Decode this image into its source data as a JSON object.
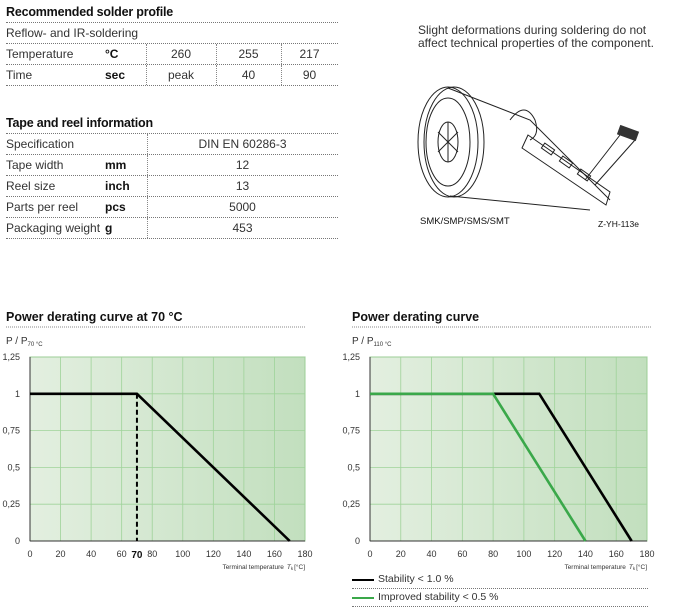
{
  "solder": {
    "title": "Recommended solder profile",
    "method": "Reflow- and IR-soldering",
    "rows": [
      {
        "label": "Temperature",
        "unit": "°C",
        "values": [
          "260",
          "255",
          "217"
        ]
      },
      {
        "label": "Time",
        "unit": "sec",
        "values": [
          "peak",
          "40",
          "90"
        ]
      }
    ]
  },
  "tape": {
    "title": "Tape and reel information",
    "rows": [
      {
        "label": "Specification",
        "unit": "",
        "value": "DIN EN 60286-3"
      },
      {
        "label": "Tape width",
        "unit": "mm",
        "value": "12"
      },
      {
        "label": "Reel size",
        "unit": "inch",
        "value": "13"
      },
      {
        "label": "Parts per reel",
        "unit": "pcs",
        "value": "5000"
      },
      {
        "label": "Packaging weight",
        "unit": "g",
        "value": "453"
      }
    ]
  },
  "note": "Slight deformations during soldering do not affect technical properties of the component.",
  "illustration": {
    "caption": "SMK/SMP/SMS/SMT",
    "code": "Z-YH-113e"
  },
  "chart_data": [
    {
      "type": "line",
      "title": "Power derating curve at 70 °C",
      "ylabel": "P / P",
      "ylabel_sub": "70 °C",
      "xlabel": "Terminal temperature",
      "xlabel_sym": "T",
      "xlabel_sub": "k",
      "xlabel_unit": "[°C]",
      "xlim": [
        0,
        180
      ],
      "ylim": [
        0,
        1.25
      ],
      "xticks": [
        "0",
        "20",
        "40",
        "60",
        "80",
        "100",
        "120",
        "140",
        "160",
        "180"
      ],
      "yticks": [
        "0",
        "0,25",
        "0,5",
        "0,75",
        "1",
        "1,25"
      ],
      "highlight_tick": "70",
      "grid": true,
      "series": [
        {
          "color": "#000000",
          "x": [
            0,
            70,
            170
          ],
          "y": [
            1,
            1,
            0
          ]
        }
      ],
      "reference_line": {
        "x": 70,
        "style": "dashed"
      }
    },
    {
      "type": "line",
      "title": "Power derating curve",
      "ylabel": "P / P",
      "ylabel_sub": "110 °C",
      "xlabel": "Terminal temperature",
      "xlabel_sym": "T",
      "xlabel_sub": "k",
      "xlabel_unit": "[°C]",
      "xlim": [
        0,
        180
      ],
      "ylim": [
        0,
        1.25
      ],
      "xticks": [
        "0",
        "20",
        "40",
        "60",
        "80",
        "100",
        "120",
        "140",
        "160",
        "180"
      ],
      "yticks": [
        "0",
        "0,25",
        "0,5",
        "0,75",
        "1",
        "1,25"
      ],
      "grid": true,
      "legend_placement": "bottom",
      "series": [
        {
          "name": "Stability < 1.0 %",
          "color": "#000000",
          "x": [
            0,
            110,
            170
          ],
          "y": [
            1,
            1,
            0
          ]
        },
        {
          "name": "Improved stability < 0.5 %",
          "color": "#3aa84a",
          "x": [
            0,
            80,
            140
          ],
          "y": [
            1,
            1,
            0
          ]
        }
      ]
    }
  ]
}
